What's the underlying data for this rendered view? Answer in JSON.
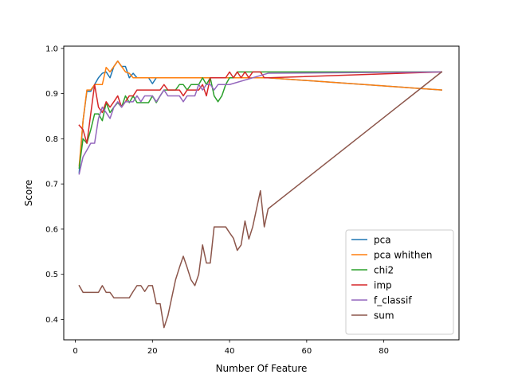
{
  "chart_data": {
    "type": "line",
    "title": "",
    "xlabel": "Number Of Feature",
    "ylabel": "Score",
    "xlim": [
      -3,
      99.5
    ],
    "ylim": [
      0.355,
      1.005
    ],
    "xticks": [
      0,
      20,
      40,
      60,
      80
    ],
    "yticks": [
      0.4,
      0.5,
      0.6,
      0.7,
      0.8,
      0.9,
      1.0
    ],
    "xtick_labels": [
      "0",
      "20",
      "40",
      "60",
      "80"
    ],
    "ytick_labels": [
      "0.4",
      "0.5",
      "0.6",
      "0.7",
      "0.8",
      "0.9",
      "1.0"
    ],
    "grid": false,
    "legend_position": "lower-right",
    "series": [
      {
        "name": "pca",
        "color": "#1f77b4",
        "x": [
          1,
          2,
          3,
          4,
          5,
          6,
          7,
          8,
          9,
          10,
          11,
          12,
          13,
          14,
          15,
          16,
          17,
          18,
          19,
          20,
          21,
          22,
          23,
          24,
          25,
          26,
          27,
          28,
          29,
          30,
          31,
          32,
          33,
          34,
          35,
          36,
          37,
          38,
          39,
          40,
          50,
          95
        ],
        "y": [
          0.725,
          0.84,
          0.905,
          0.905,
          0.92,
          0.935,
          0.945,
          0.948,
          0.935,
          0.96,
          0.972,
          0.96,
          0.96,
          0.935,
          0.945,
          0.935,
          0.935,
          0.935,
          0.935,
          0.922,
          0.935,
          0.935,
          0.935,
          0.935,
          0.935,
          0.935,
          0.935,
          0.935,
          0.935,
          0.935,
          0.935,
          0.935,
          0.935,
          0.935,
          0.935,
          0.935,
          0.935,
          0.935,
          0.935,
          0.935,
          0.935,
          0.908
        ]
      },
      {
        "name": "pca whithen",
        "color": "#ff7f0e",
        "x": [
          1,
          2,
          3,
          4,
          5,
          6,
          7,
          8,
          9,
          10,
          11,
          12,
          13,
          14,
          15,
          16,
          17,
          18,
          19,
          20,
          21,
          22,
          23,
          24,
          25,
          26,
          27,
          28,
          29,
          30,
          31,
          32,
          33,
          34,
          35,
          36,
          37,
          38,
          39,
          40,
          50,
          95
        ],
        "y": [
          0.74,
          0.84,
          0.908,
          0.908,
          0.92,
          0.92,
          0.92,
          0.958,
          0.948,
          0.96,
          0.972,
          0.96,
          0.948,
          0.945,
          0.935,
          0.935,
          0.935,
          0.935,
          0.935,
          0.935,
          0.935,
          0.935,
          0.935,
          0.935,
          0.935,
          0.935,
          0.935,
          0.935,
          0.935,
          0.935,
          0.935,
          0.935,
          0.935,
          0.935,
          0.935,
          0.935,
          0.935,
          0.935,
          0.935,
          0.935,
          0.935,
          0.908
        ]
      },
      {
        "name": "chi2",
        "color": "#2ca02c",
        "x": [
          1,
          2,
          3,
          4,
          5,
          6,
          7,
          8,
          9,
          10,
          11,
          12,
          13,
          14,
          15,
          16,
          17,
          18,
          19,
          20,
          21,
          22,
          23,
          24,
          25,
          26,
          27,
          28,
          29,
          30,
          31,
          32,
          33,
          34,
          35,
          36,
          37,
          38,
          39,
          40,
          41,
          42,
          43,
          44,
          45,
          46,
          47,
          48,
          49,
          50,
          95
        ],
        "y": [
          0.735,
          0.8,
          0.79,
          0.82,
          0.855,
          0.855,
          0.84,
          0.88,
          0.858,
          0.87,
          0.88,
          0.87,
          0.895,
          0.88,
          0.895,
          0.88,
          0.88,
          0.88,
          0.88,
          0.895,
          0.88,
          0.895,
          0.908,
          0.908,
          0.908,
          0.908,
          0.92,
          0.92,
          0.908,
          0.92,
          0.92,
          0.92,
          0.935,
          0.92,
          0.935,
          0.895,
          0.882,
          0.895,
          0.92,
          0.935,
          0.935,
          0.948,
          0.948,
          0.948,
          0.948,
          0.948,
          0.948,
          0.948,
          0.948,
          0.948,
          0.948
        ]
      },
      {
        "name": "imp",
        "color": "#d62728",
        "x": [
          1,
          2,
          3,
          4,
          5,
          6,
          7,
          8,
          9,
          10,
          11,
          12,
          13,
          14,
          15,
          16,
          17,
          18,
          19,
          20,
          21,
          22,
          23,
          24,
          25,
          26,
          27,
          28,
          29,
          30,
          31,
          32,
          33,
          34,
          35,
          36,
          37,
          38,
          39,
          40,
          41,
          42,
          43,
          44,
          45,
          46,
          47,
          48,
          49,
          50,
          95
        ],
        "y": [
          0.83,
          0.82,
          0.79,
          0.855,
          0.92,
          0.87,
          0.858,
          0.882,
          0.87,
          0.882,
          0.895,
          0.87,
          0.882,
          0.895,
          0.895,
          0.908,
          0.908,
          0.908,
          0.908,
          0.908,
          0.908,
          0.908,
          0.92,
          0.908,
          0.908,
          0.908,
          0.908,
          0.895,
          0.908,
          0.908,
          0.908,
          0.908,
          0.92,
          0.895,
          0.935,
          0.935,
          0.935,
          0.935,
          0.935,
          0.948,
          0.935,
          0.948,
          0.935,
          0.948,
          0.935,
          0.948,
          0.948,
          0.948,
          0.935,
          0.935,
          0.948
        ]
      },
      {
        "name": "f_classif",
        "color": "#9467bd",
        "x": [
          1,
          2,
          3,
          4,
          5,
          6,
          7,
          8,
          9,
          10,
          11,
          12,
          13,
          14,
          15,
          16,
          17,
          18,
          19,
          20,
          21,
          22,
          23,
          24,
          25,
          26,
          27,
          28,
          29,
          30,
          31,
          32,
          33,
          34,
          35,
          36,
          37,
          38,
          39,
          40,
          50,
          95
        ],
        "y": [
          0.722,
          0.76,
          0.775,
          0.79,
          0.79,
          0.845,
          0.87,
          0.858,
          0.845,
          0.87,
          0.882,
          0.87,
          0.882,
          0.882,
          0.882,
          0.895,
          0.882,
          0.895,
          0.895,
          0.895,
          0.882,
          0.895,
          0.908,
          0.895,
          0.895,
          0.895,
          0.895,
          0.882,
          0.895,
          0.895,
          0.895,
          0.92,
          0.908,
          0.92,
          0.92,
          0.908,
          0.92,
          0.92,
          0.92,
          0.92,
          0.945,
          0.948
        ]
      },
      {
        "name": "sum",
        "color": "#8c564b",
        "x": [
          1,
          2,
          3,
          4,
          5,
          6,
          7,
          8,
          9,
          10,
          11,
          12,
          13,
          14,
          15,
          16,
          17,
          18,
          19,
          20,
          21,
          22,
          23,
          24,
          25,
          26,
          27,
          28,
          29,
          30,
          31,
          32,
          33,
          34,
          35,
          36,
          37,
          38,
          39,
          40,
          41,
          42,
          43,
          44,
          45,
          46,
          47,
          48,
          49,
          50,
          95
        ],
        "y": [
          0.475,
          0.46,
          0.46,
          0.46,
          0.46,
          0.46,
          0.475,
          0.46,
          0.46,
          0.448,
          0.448,
          0.448,
          0.448,
          0.448,
          0.462,
          0.475,
          0.475,
          0.462,
          0.475,
          0.475,
          0.435,
          0.435,
          0.382,
          0.408,
          0.448,
          0.488,
          0.515,
          0.54,
          0.515,
          0.488,
          0.475,
          0.5,
          0.565,
          0.525,
          0.525,
          0.605,
          0.605,
          0.605,
          0.605,
          0.592,
          0.58,
          0.553,
          0.565,
          0.618,
          0.578,
          0.605,
          0.645,
          0.685,
          0.605,
          0.645,
          0.948
        ]
      }
    ]
  }
}
